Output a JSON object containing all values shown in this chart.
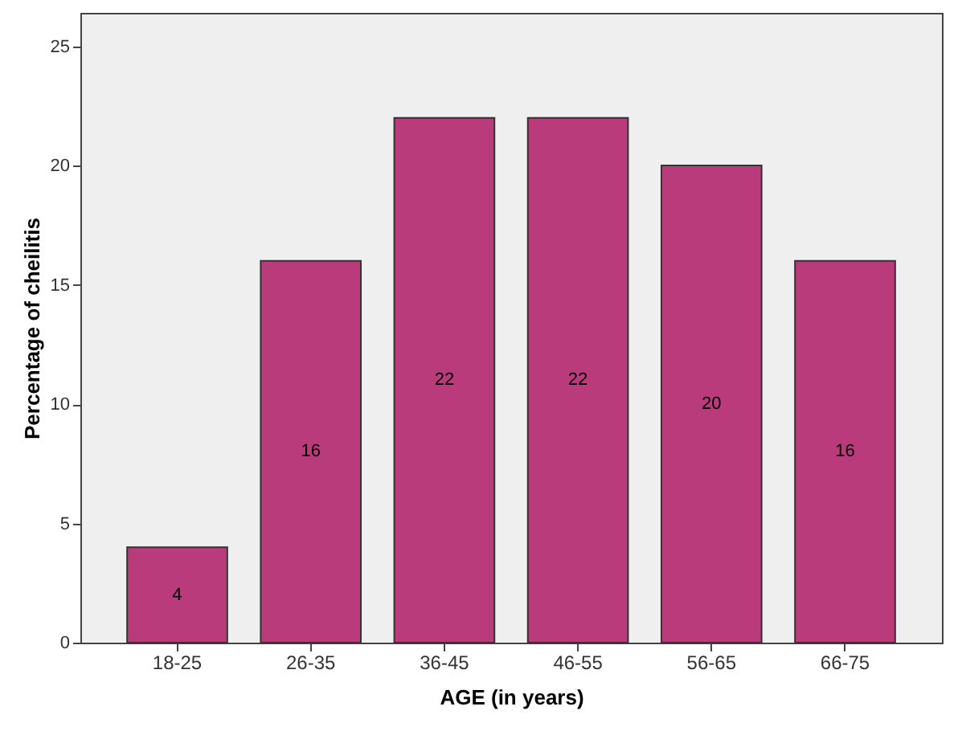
{
  "chart_data": {
    "type": "bar",
    "xlabel": "AGE (in years)",
    "ylabel": "Percentage of cheilitis",
    "categories": [
      "18-25",
      "26-35",
      "36-45",
      "46-55",
      "56-65",
      "66-75"
    ],
    "values": [
      4,
      16,
      22,
      22,
      20,
      16
    ],
    "color": "#b93b7b",
    "ylim": [
      0,
      26.4
    ],
    "yticks": [
      0,
      5,
      10,
      15,
      20,
      25
    ],
    "grid": false,
    "data_labels": true
  }
}
